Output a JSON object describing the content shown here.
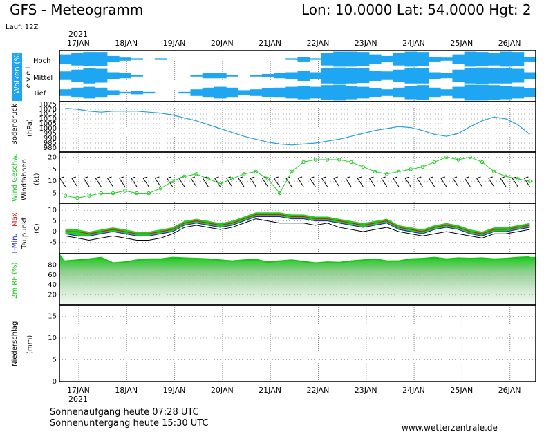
{
  "header": {
    "title": "GFS - Meteogramm",
    "location": "Lon: 10.0000 Lat: 54.0000 Hgt: 2",
    "run": "Lauf: 12Z"
  },
  "footer": {
    "sunrise": "Sonnenaufgang heute 07:28 UTC",
    "sunset": "Sonnenuntergang heute 15:30 UTC",
    "website": "www.wetterzentrale.de"
  },
  "colors": {
    "cloud": "#1ea6f2",
    "pressure": "#1e9ee8",
    "wind": "#22cc22",
    "tmin": "#1a1ad0",
    "tmax": "#e01010",
    "precip": "#22cc22",
    "rh_dark": "#16c416"
  },
  "chart_data": {
    "type": "meteogram",
    "year": "2021",
    "days": [
      "17JAN",
      "18JAN",
      "19JAN",
      "20JAN",
      "21JAN",
      "22JAN",
      "23JAN",
      "24JAN",
      "25JAN",
      "26JAN"
    ],
    "time_step_hours": 6,
    "panels": {
      "clouds": {
        "label": "Wolken (%)",
        "side_label": "L e v e l",
        "levels": [
          "Hoch",
          "Mittel",
          "Tief"
        ],
        "hoch": [
          60,
          80,
          90,
          90,
          40,
          20,
          10,
          0,
          10,
          0,
          0,
          0,
          0,
          0,
          0,
          0,
          0,
          0,
          0,
          10,
          30,
          10,
          80,
          95,
          95,
          90,
          60,
          40,
          80,
          95,
          90,
          30,
          20,
          60,
          95,
          90,
          80,
          95,
          90,
          30
        ],
        "mittel": [
          50,
          70,
          90,
          80,
          40,
          30,
          10,
          0,
          0,
          0,
          0,
          10,
          30,
          30,
          10,
          0,
          10,
          20,
          30,
          40,
          60,
          40,
          90,
          95,
          90,
          85,
          60,
          50,
          70,
          90,
          90,
          40,
          30,
          70,
          90,
          95,
          90,
          90,
          80,
          40
        ],
        "tief": [
          40,
          60,
          70,
          60,
          30,
          10,
          20,
          10,
          0,
          0,
          10,
          40,
          60,
          70,
          60,
          30,
          40,
          50,
          60,
          70,
          80,
          70,
          90,
          95,
          80,
          70,
          50,
          40,
          60,
          80,
          90,
          60,
          40,
          70,
          95,
          95,
          90,
          80,
          70,
          50
        ]
      },
      "pressure": {
        "label": "Bodendruck",
        "unit": "(hPa)",
        "ticks": [
          "1025",
          "1020",
          "1015",
          "1010",
          "1005",
          "1000",
          "995",
          "990",
          "985",
          "980"
        ],
        "ylim": [
          980,
          1025
        ],
        "values": [
          1021,
          1020,
          1018,
          1017,
          1018,
          1018,
          1018,
          1017,
          1016,
          1014,
          1011,
          1008,
          1004,
          1000,
          996,
          992,
          989,
          986,
          984,
          983,
          984,
          985,
          987,
          989,
          992,
          995,
          998,
          1000,
          1002,
          1001,
          998,
          994,
          992,
          995,
          1002,
          1008,
          1012,
          1010,
          1004,
          994
        ]
      },
      "wind": {
        "label": "Wind Geschw.",
        "sublabel": "Windfahnen",
        "unit": "(kt)",
        "ticks": [
          "20",
          "15",
          "10",
          "5"
        ],
        "ylim": [
          2,
          21
        ],
        "values": [
          4,
          3,
          4,
          5,
          5,
          6,
          5,
          5,
          7,
          10,
          12,
          13,
          11,
          9,
          11,
          13,
          14,
          11,
          5,
          14,
          18,
          19,
          19,
          19,
          18,
          16,
          14,
          13,
          14,
          15,
          16,
          18,
          20,
          19,
          20,
          18,
          14,
          12,
          11,
          10
        ]
      },
      "temperature": {
        "label_a": "T-Min,",
        "label_b": "Max",
        "sublabel": "Taupunkt",
        "unit": "(C)",
        "ticks": [
          "10",
          "5",
          "0",
          "-5"
        ],
        "ylim": [
          -9,
          12
        ],
        "tmax": [
          0,
          0,
          -1,
          0,
          1,
          0,
          -1,
          -1,
          0,
          1,
          4,
          5,
          4,
          3,
          4,
          6,
          8,
          8,
          8,
          7,
          7,
          6,
          6,
          5,
          4,
          3,
          4,
          5,
          2,
          1,
          0,
          2,
          3,
          2,
          0,
          -1,
          1,
          1,
          2,
          3
        ],
        "tmin": [
          -1,
          -2,
          -2,
          -1,
          0,
          -1,
          -2,
          -2,
          -1,
          0,
          3,
          4,
          3,
          2,
          3,
          5,
          7,
          7,
          7,
          6,
          6,
          5,
          5,
          4,
          3,
          2,
          3,
          4,
          1,
          0,
          -1,
          1,
          2,
          1,
          -1,
          -2,
          0,
          0,
          1,
          2
        ],
        "dewpoint": [
          -2,
          -3,
          -4,
          -3,
          -2,
          -3,
          -4,
          -4,
          -3,
          -1,
          2,
          3,
          2,
          1,
          2,
          4,
          6,
          5,
          4,
          4,
          4,
          3,
          4,
          2,
          1,
          0,
          1,
          2,
          0,
          -1,
          -2,
          -1,
          0,
          -1,
          -2,
          -3,
          -1,
          -1,
          0,
          1
        ]
      },
      "humidity": {
        "label": "2m RF (%)",
        "ticks": [
          "80",
          "60",
          "40",
          "20"
        ],
        "ylim": [
          0,
          100
        ],
        "values": [
          88,
          90,
          92,
          95,
          84,
          86,
          90,
          92,
          92,
          95,
          94,
          93,
          92,
          90,
          88,
          90,
          91,
          86,
          88,
          90,
          87,
          84,
          86,
          85,
          88,
          90,
          92,
          88,
          88,
          92,
          93,
          95,
          92,
          94,
          93,
          94,
          92,
          93,
          95,
          96
        ]
      },
      "precip": {
        "label": "Niederschlag",
        "unit": "(mm)",
        "ticks": [
          "15",
          "10",
          "5",
          "0"
        ],
        "ylim": [
          0,
          17
        ],
        "values": [
          0,
          0,
          0,
          0,
          0,
          0,
          0,
          0,
          0,
          0,
          0,
          0,
          0,
          0,
          0,
          0,
          0,
          0,
          0,
          0,
          0,
          0,
          0,
          0,
          0,
          0,
          0,
          0,
          0,
          0,
          0,
          0,
          0,
          0,
          0,
          0,
          0,
          0,
          0,
          0
        ]
      }
    }
  }
}
